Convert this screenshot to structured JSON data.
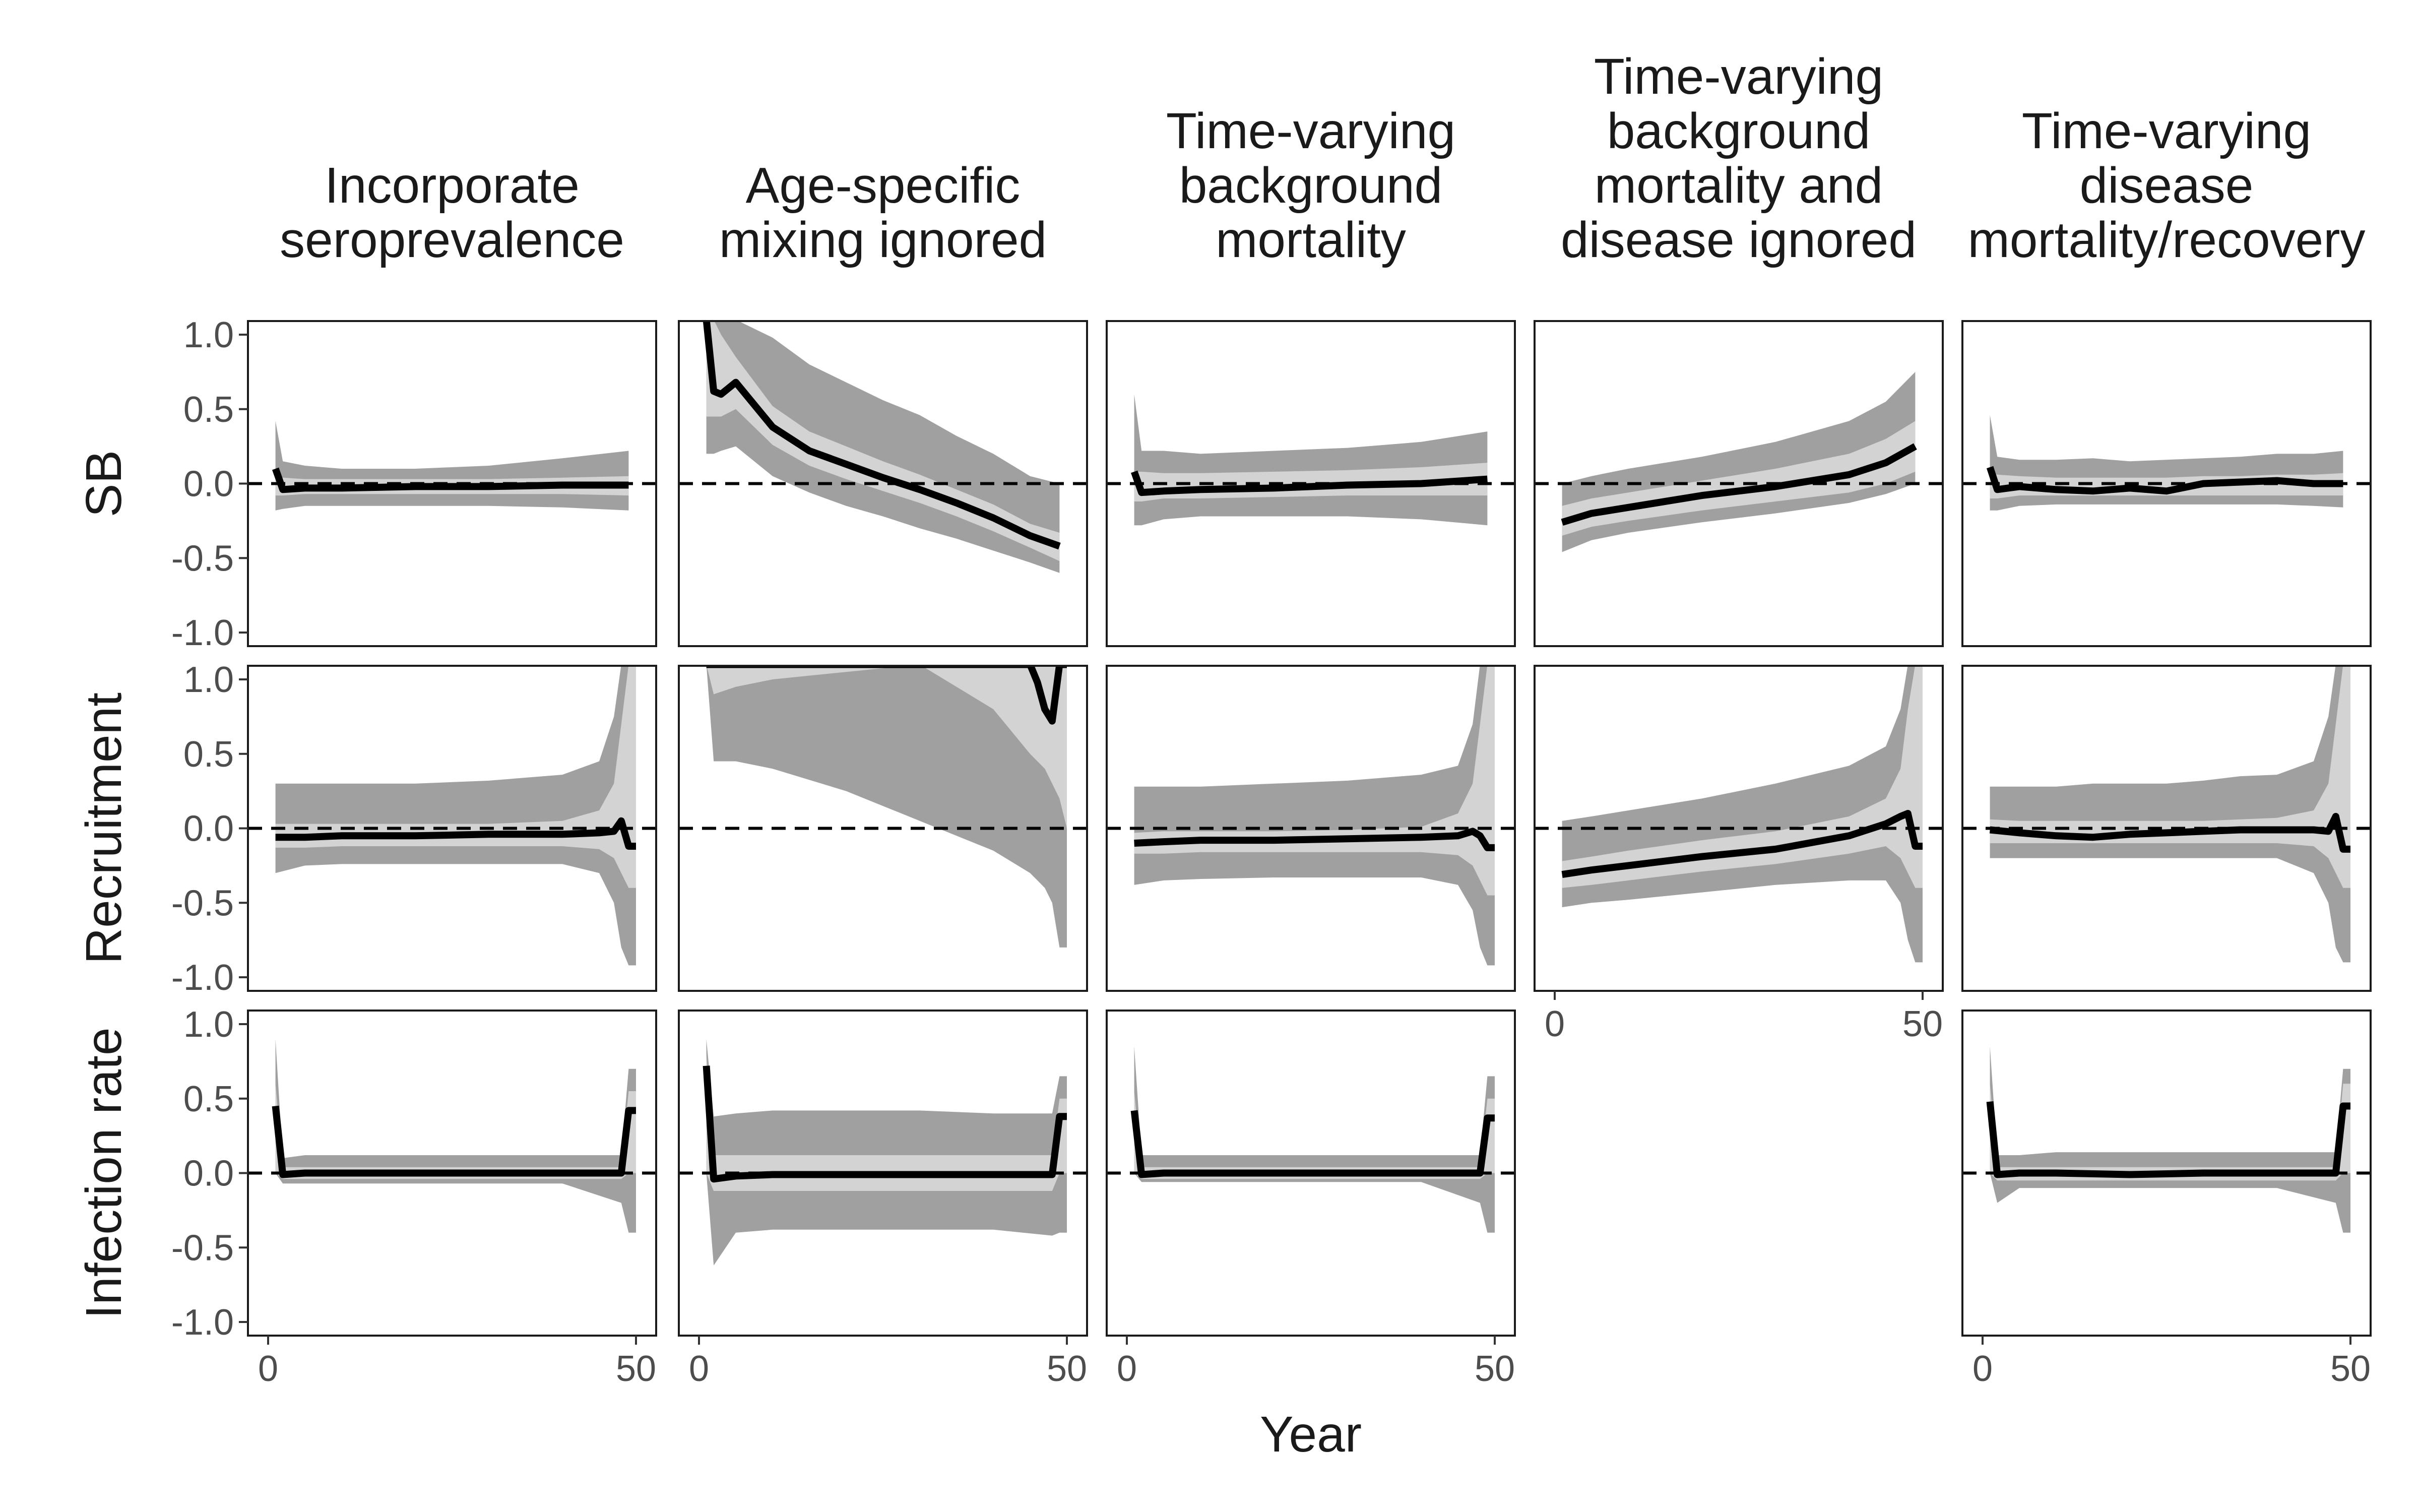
{
  "chart_data": {
    "type": "line",
    "layout": "facet-grid",
    "xlabel": "Year",
    "xlim": [
      0,
      50
    ],
    "ylim": [
      -1.0,
      1.0
    ],
    "x_ticks": [
      "0",
      "50"
    ],
    "y_ticks": [
      "1.0",
      "0.5",
      "0.0",
      "-0.5",
      "-1.0"
    ],
    "reference_line": {
      "y": 0.0,
      "style": "dashed"
    },
    "colors": {
      "outer_band": "#a0a0a0",
      "inner_band": "#d3d3d3",
      "median": "#000000",
      "reference": "#000000"
    },
    "columns": [
      "Incorporate seroprevalence",
      "Age-specific mixing ignored",
      "Time-varying background mortality",
      "Time-varying background mortality and disease ignored",
      "Time-varying disease mortality/recovery"
    ],
    "rows": [
      "SB",
      "Recruitment",
      "Infection rate"
    ],
    "panels": [
      {
        "row": 0,
        "col": 0,
        "x": [
          1,
          2,
          5,
          10,
          20,
          30,
          40,
          49
        ],
        "median": [
          0.1,
          -0.04,
          -0.03,
          -0.03,
          -0.02,
          -0.02,
          -0.01,
          -0.01
        ],
        "inner_lo": [
          -0.08,
          -0.08,
          -0.07,
          -0.07,
          -0.07,
          -0.07,
          -0.07,
          -0.08
        ],
        "inner_hi": [
          0.05,
          0.04,
          0.03,
          0.03,
          0.03,
          0.03,
          0.04,
          0.05
        ],
        "outer_lo": [
          -0.18,
          -0.17,
          -0.15,
          -0.15,
          -0.15,
          -0.15,
          -0.16,
          -0.18
        ],
        "outer_hi": [
          0.42,
          0.15,
          0.12,
          0.1,
          0.1,
          0.12,
          0.17,
          0.22
        ]
      },
      {
        "row": 0,
        "col": 1,
        "x": [
          1,
          2,
          3,
          5,
          10,
          15,
          20,
          25,
          30,
          35,
          40,
          45,
          49
        ],
        "median": [
          1.1,
          0.62,
          0.6,
          0.68,
          0.38,
          0.22,
          0.13,
          0.04,
          -0.04,
          -0.13,
          -0.23,
          -0.35,
          -0.42
        ],
        "inner_lo": [
          0.45,
          0.45,
          0.45,
          0.5,
          0.26,
          0.12,
          0.03,
          -0.05,
          -0.13,
          -0.22,
          -0.32,
          -0.43,
          -0.52
        ],
        "inner_hi": [
          1.1,
          1.1,
          1.0,
          0.85,
          0.52,
          0.35,
          0.25,
          0.15,
          0.06,
          -0.04,
          -0.14,
          -0.27,
          -0.33
        ],
        "outer_lo": [
          0.2,
          0.2,
          0.22,
          0.25,
          0.05,
          -0.06,
          -0.15,
          -0.22,
          -0.3,
          -0.37,
          -0.45,
          -0.53,
          -0.6
        ],
        "outer_hi": [
          1.1,
          1.1,
          1.1,
          1.1,
          0.98,
          0.8,
          0.68,
          0.56,
          0.46,
          0.32,
          0.2,
          0.05,
          0.0
        ]
      },
      {
        "row": 0,
        "col": 2,
        "x": [
          1,
          2,
          5,
          10,
          20,
          30,
          40,
          49
        ],
        "median": [
          0.08,
          -0.06,
          -0.05,
          -0.04,
          -0.03,
          -0.01,
          0.0,
          0.03
        ],
        "inner_lo": [
          -0.12,
          -0.12,
          -0.1,
          -0.1,
          -0.09,
          -0.08,
          -0.08,
          -0.08
        ],
        "inner_hi": [
          0.08,
          0.08,
          0.07,
          0.07,
          0.08,
          0.09,
          0.11,
          0.14
        ],
        "outer_lo": [
          -0.28,
          -0.28,
          -0.24,
          -0.22,
          -0.22,
          -0.22,
          -0.24,
          -0.28
        ],
        "outer_hi": [
          0.6,
          0.22,
          0.22,
          0.2,
          0.22,
          0.24,
          0.28,
          0.35
        ]
      },
      {
        "row": 0,
        "col": 3,
        "x": [
          1,
          5,
          10,
          20,
          30,
          40,
          45,
          49
        ],
        "median": [
          -0.26,
          -0.2,
          -0.16,
          -0.08,
          -0.02,
          0.06,
          0.14,
          0.25
        ],
        "inner_lo": [
          -0.35,
          -0.29,
          -0.25,
          -0.18,
          -0.12,
          -0.06,
          0.0,
          0.08
        ],
        "inner_hi": [
          -0.15,
          -0.1,
          -0.06,
          0.02,
          0.1,
          0.2,
          0.3,
          0.42
        ],
        "outer_lo": [
          -0.46,
          -0.38,
          -0.33,
          -0.26,
          -0.2,
          -0.13,
          -0.07,
          0.0
        ],
        "outer_hi": [
          0.0,
          0.05,
          0.1,
          0.18,
          0.28,
          0.42,
          0.55,
          0.75
        ]
      },
      {
        "row": 0,
        "col": 4,
        "x": [
          1,
          2,
          5,
          10,
          15,
          20,
          25,
          30,
          35,
          40,
          45,
          49
        ],
        "median": [
          0.11,
          -0.04,
          -0.02,
          -0.04,
          -0.05,
          -0.03,
          -0.05,
          0.0,
          0.01,
          0.02,
          0.0,
          0.0
        ],
        "inner_lo": [
          -0.1,
          -0.1,
          -0.08,
          -0.08,
          -0.08,
          -0.08,
          -0.08,
          -0.08,
          -0.08,
          -0.08,
          -0.08,
          -0.08
        ],
        "inner_hi": [
          0.07,
          0.06,
          0.05,
          0.04,
          0.04,
          0.04,
          0.04,
          0.05,
          0.05,
          0.06,
          0.06,
          0.07
        ],
        "outer_lo": [
          -0.18,
          -0.18,
          -0.15,
          -0.14,
          -0.14,
          -0.14,
          -0.14,
          -0.14,
          -0.14,
          -0.14,
          -0.15,
          -0.16
        ],
        "outer_hi": [
          0.46,
          0.18,
          0.16,
          0.16,
          0.17,
          0.15,
          0.16,
          0.17,
          0.18,
          0.2,
          0.2,
          0.22
        ]
      },
      {
        "row": 1,
        "col": 0,
        "x": [
          1,
          5,
          10,
          20,
          30,
          40,
          45,
          47,
          48,
          49,
          50
        ],
        "median": [
          -0.06,
          -0.06,
          -0.05,
          -0.05,
          -0.04,
          -0.04,
          -0.03,
          -0.02,
          0.05,
          -0.12,
          -0.12
        ],
        "inner_lo": [
          -0.13,
          -0.13,
          -0.12,
          -0.12,
          -0.12,
          -0.12,
          -0.14,
          -0.2,
          -0.3,
          -0.4,
          -0.4
        ],
        "inner_hi": [
          0.03,
          0.03,
          0.03,
          0.03,
          0.03,
          0.05,
          0.12,
          0.3,
          0.7,
          1.1,
          1.1
        ],
        "outer_lo": [
          -0.3,
          -0.25,
          -0.24,
          -0.24,
          -0.24,
          -0.24,
          -0.3,
          -0.5,
          -0.8,
          -0.92,
          -0.92
        ],
        "outer_hi": [
          0.3,
          0.3,
          0.3,
          0.3,
          0.32,
          0.36,
          0.45,
          0.75,
          1.1,
          1.1,
          1.1
        ]
      },
      {
        "row": 1,
        "col": 1,
        "x": [
          1,
          2,
          5,
          10,
          20,
          30,
          40,
          45,
          46,
          47,
          48,
          49,
          50
        ],
        "median": [
          1.1,
          1.1,
          1.1,
          1.1,
          1.1,
          1.1,
          1.1,
          1.1,
          0.98,
          0.8,
          0.72,
          1.1,
          1.1
        ],
        "inner_lo": [
          1.1,
          0.9,
          0.95,
          1.0,
          1.05,
          1.1,
          0.8,
          0.5,
          0.45,
          0.4,
          0.3,
          0.2,
          0.0
        ],
        "inner_hi": [
          1.1,
          1.1,
          1.1,
          1.1,
          1.1,
          1.1,
          1.1,
          1.1,
          1.1,
          1.1,
          1.1,
          1.1,
          1.1
        ],
        "outer_lo": [
          1.1,
          0.45,
          0.45,
          0.4,
          0.25,
          0.05,
          -0.15,
          -0.3,
          -0.35,
          -0.4,
          -0.5,
          -0.8,
          -0.8
        ],
        "outer_hi": [
          1.1,
          1.1,
          1.1,
          1.1,
          1.1,
          1.1,
          1.1,
          1.1,
          1.1,
          1.1,
          1.1,
          1.1,
          1.1
        ]
      },
      {
        "row": 1,
        "col": 2,
        "x": [
          1,
          5,
          10,
          20,
          30,
          40,
          45,
          47,
          48,
          49,
          50
        ],
        "median": [
          -0.1,
          -0.09,
          -0.08,
          -0.08,
          -0.07,
          -0.06,
          -0.05,
          -0.02,
          -0.05,
          -0.13,
          -0.13
        ],
        "inner_lo": [
          -0.17,
          -0.17,
          -0.16,
          -0.16,
          -0.16,
          -0.16,
          -0.18,
          -0.25,
          -0.35,
          -0.45,
          -0.45
        ],
        "inner_hi": [
          -0.03,
          -0.02,
          -0.02,
          -0.02,
          -0.01,
          0.01,
          0.1,
          0.3,
          0.7,
          1.1,
          1.1
        ],
        "outer_lo": [
          -0.38,
          -0.35,
          -0.34,
          -0.33,
          -0.33,
          -0.33,
          -0.38,
          -0.55,
          -0.8,
          -0.92,
          -0.92
        ],
        "outer_hi": [
          0.28,
          0.28,
          0.28,
          0.3,
          0.32,
          0.36,
          0.42,
          0.7,
          1.1,
          1.1,
          1.1
        ]
      },
      {
        "row": 1,
        "col": 3,
        "x": [
          1,
          5,
          10,
          20,
          30,
          40,
          45,
          47,
          48,
          49,
          50
        ],
        "median": [
          -0.31,
          -0.28,
          -0.25,
          -0.19,
          -0.14,
          -0.05,
          0.03,
          0.08,
          0.1,
          -0.12,
          -0.12
        ],
        "inner_lo": [
          -0.4,
          -0.38,
          -0.35,
          -0.29,
          -0.24,
          -0.17,
          -0.12,
          -0.2,
          -0.3,
          -0.4,
          -0.4
        ],
        "inner_hi": [
          -0.22,
          -0.19,
          -0.15,
          -0.08,
          -0.02,
          0.08,
          0.2,
          0.4,
          0.8,
          1.1,
          1.1
        ],
        "outer_lo": [
          -0.53,
          -0.5,
          -0.48,
          -0.43,
          -0.38,
          -0.35,
          -0.35,
          -0.5,
          -0.75,
          -0.9,
          -0.9
        ],
        "outer_hi": [
          0.05,
          0.08,
          0.12,
          0.2,
          0.3,
          0.42,
          0.55,
          0.8,
          1.1,
          1.1,
          1.1
        ]
      },
      {
        "row": 1,
        "col": 4,
        "x": [
          1,
          5,
          10,
          15,
          20,
          25,
          30,
          35,
          40,
          45,
          47,
          48,
          49,
          50
        ],
        "median": [
          -0.01,
          -0.03,
          -0.05,
          -0.06,
          -0.04,
          -0.03,
          -0.02,
          -0.01,
          -0.01,
          -0.01,
          -0.02,
          0.08,
          -0.14,
          -0.14
        ],
        "inner_lo": [
          -0.1,
          -0.1,
          -0.1,
          -0.1,
          -0.1,
          -0.1,
          -0.1,
          -0.1,
          -0.1,
          -0.12,
          -0.2,
          -0.3,
          -0.4,
          -0.4
        ],
        "inner_hi": [
          0.06,
          0.05,
          0.05,
          0.05,
          0.05,
          0.05,
          0.05,
          0.06,
          0.07,
          0.12,
          0.3,
          0.7,
          1.1,
          1.1
        ],
        "outer_lo": [
          -0.2,
          -0.2,
          -0.2,
          -0.2,
          -0.2,
          -0.2,
          -0.2,
          -0.2,
          -0.2,
          -0.3,
          -0.5,
          -0.8,
          -0.9,
          -0.9
        ],
        "outer_hi": [
          0.28,
          0.28,
          0.28,
          0.3,
          0.3,
          0.3,
          0.32,
          0.35,
          0.36,
          0.45,
          0.75,
          1.1,
          1.1,
          1.1
        ]
      },
      {
        "row": 2,
        "col": 0,
        "x": [
          1,
          2,
          5,
          10,
          20,
          30,
          40,
          48,
          49,
          50
        ],
        "median": [
          0.45,
          -0.01,
          0.0,
          0.0,
          0.0,
          0.0,
          0.0,
          0.0,
          0.42,
          0.42
        ],
        "inner_lo": [
          0.0,
          -0.04,
          -0.04,
          -0.04,
          -0.04,
          -0.04,
          -0.04,
          -0.04,
          0.0,
          0.0
        ],
        "inner_hi": [
          0.6,
          0.04,
          0.04,
          0.04,
          0.04,
          0.04,
          0.04,
          0.04,
          0.55,
          0.55
        ],
        "outer_lo": [
          0.0,
          -0.07,
          -0.07,
          -0.07,
          -0.07,
          -0.07,
          -0.07,
          -0.2,
          -0.4,
          -0.4
        ],
        "outer_hi": [
          0.9,
          0.1,
          0.12,
          0.12,
          0.12,
          0.12,
          0.12,
          0.12,
          0.7,
          0.7
        ]
      },
      {
        "row": 2,
        "col": 1,
        "x": [
          1,
          2,
          5,
          10,
          20,
          30,
          40,
          48,
          49,
          50
        ],
        "median": [
          0.72,
          -0.04,
          -0.02,
          -0.01,
          -0.01,
          -0.01,
          -0.01,
          -0.01,
          0.38,
          0.38
        ],
        "inner_lo": [
          0.0,
          -0.12,
          -0.12,
          -0.12,
          -0.12,
          -0.12,
          -0.12,
          -0.12,
          0.0,
          0.0
        ],
        "inner_hi": [
          0.8,
          0.12,
          0.12,
          0.12,
          0.12,
          0.12,
          0.12,
          0.12,
          0.5,
          0.5
        ],
        "outer_lo": [
          0.0,
          -0.62,
          -0.4,
          -0.38,
          -0.38,
          -0.38,
          -0.38,
          -0.42,
          -0.4,
          -0.4
        ],
        "outer_hi": [
          0.9,
          0.38,
          0.4,
          0.42,
          0.42,
          0.42,
          0.4,
          0.4,
          0.65,
          0.65
        ]
      },
      {
        "row": 2,
        "col": 2,
        "x": [
          1,
          2,
          5,
          10,
          20,
          30,
          40,
          48,
          49,
          50
        ],
        "median": [
          0.42,
          -0.01,
          0.0,
          0.0,
          0.0,
          0.0,
          0.0,
          0.0,
          0.37,
          0.37
        ],
        "inner_lo": [
          0.0,
          -0.04,
          -0.04,
          -0.04,
          -0.04,
          -0.04,
          -0.04,
          -0.04,
          0.0,
          0.0
        ],
        "inner_hi": [
          0.55,
          0.04,
          0.04,
          0.04,
          0.04,
          0.04,
          0.04,
          0.04,
          0.5,
          0.5
        ],
        "outer_lo": [
          0.0,
          -0.06,
          -0.06,
          -0.06,
          -0.06,
          -0.06,
          -0.06,
          -0.2,
          -0.4,
          -0.4
        ],
        "outer_hi": [
          0.85,
          0.12,
          0.12,
          0.12,
          0.12,
          0.12,
          0.12,
          0.12,
          0.65,
          0.65
        ]
      },
      {
        "row": 2,
        "col": 4,
        "x": [
          1,
          2,
          5,
          10,
          20,
          30,
          40,
          48,
          49,
          50
        ],
        "median": [
          0.48,
          -0.01,
          0.0,
          0.0,
          -0.01,
          0.0,
          0.0,
          0.0,
          0.45,
          0.45
        ],
        "inner_lo": [
          0.0,
          -0.05,
          -0.05,
          -0.05,
          -0.05,
          -0.05,
          -0.05,
          -0.05,
          0.0,
          0.0
        ],
        "inner_hi": [
          0.6,
          0.04,
          0.04,
          0.04,
          0.04,
          0.04,
          0.04,
          0.04,
          0.6,
          0.6
        ],
        "outer_lo": [
          0.0,
          -0.2,
          -0.1,
          -0.1,
          -0.1,
          -0.1,
          -0.1,
          -0.2,
          -0.4,
          -0.4
        ],
        "outer_hi": [
          0.85,
          0.12,
          0.12,
          0.14,
          0.14,
          0.14,
          0.14,
          0.14,
          0.7,
          0.7
        ]
      }
    ]
  }
}
